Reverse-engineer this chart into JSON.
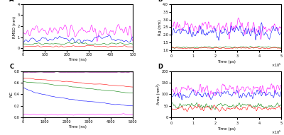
{
  "panel_A": {
    "label": "A",
    "xlabel": "Time (ns)",
    "ylabel": "RMSD (nm)",
    "xlim": [
      0,
      500
    ],
    "ylim": [
      -0.2,
      4.0
    ],
    "yticks": [
      0,
      1,
      2,
      3,
      4
    ],
    "colors": [
      "magenta",
      "blue",
      "green",
      "red"
    ],
    "seed": 1
  },
  "panel_B": {
    "label": "B",
    "xlabel": "Time (ps)",
    "ylabel": "Rg (nm)",
    "xlim": [
      0,
      500000
    ],
    "ylim": [
      1.0,
      4.0
    ],
    "yticks": [
      1.0,
      1.5,
      2.0,
      2.5,
      3.0,
      3.5,
      4.0
    ],
    "colors": [
      "magenta",
      "blue",
      "green",
      "red"
    ],
    "seed": 2
  },
  "panel_C": {
    "label": "C",
    "xlabel": "Time (ns)",
    "ylabel": "NC",
    "xlim": [
      0,
      5000
    ],
    "ylim": [
      0.0,
      0.8
    ],
    "yticks": [
      0.0,
      0.1,
      0.2,
      0.3,
      0.4,
      0.5,
      0.6,
      0.7,
      0.8
    ],
    "colors": [
      "purple",
      "red",
      "green",
      "blue",
      "magenta"
    ],
    "seed": 3
  },
  "panel_D": {
    "label": "D",
    "xlabel": "Time (ps)",
    "ylabel": "Area (nm²)",
    "xlim": [
      0,
      500000
    ],
    "ylim": [
      0,
      200
    ],
    "yticks": [
      0,
      50,
      100,
      150,
      200
    ],
    "colors": [
      "magenta",
      "blue",
      "green",
      "red"
    ],
    "seed": 4
  }
}
